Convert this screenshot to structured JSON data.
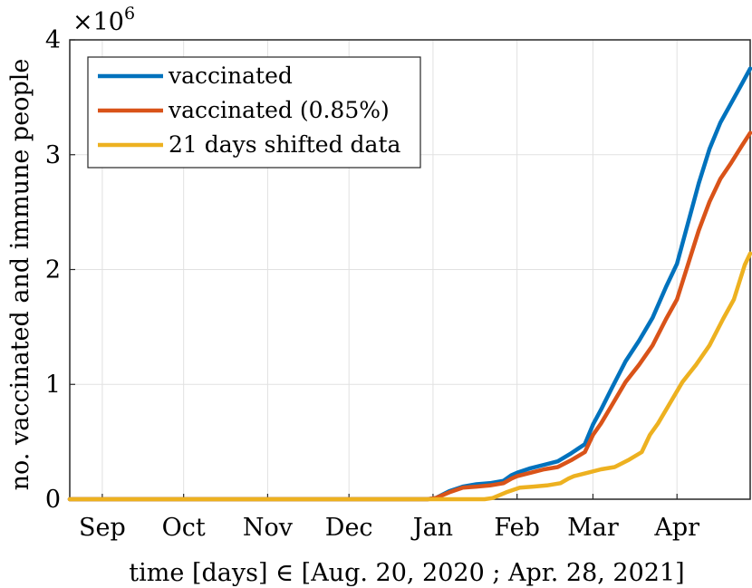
{
  "chart_data": {
    "type": "line",
    "title": "",
    "xlabel": "time [days] ∈ [Aug. 20, 2020 ; Apr. 28, 2021]",
    "ylabel": "no. vaccinated and immune people",
    "y_exponent_label": "×10",
    "y_exponent_power": "6",
    "x_range_days": [
      0,
      251
    ],
    "ylim": [
      0,
      4
    ],
    "grid": true,
    "legend_position": "top-left",
    "x_tick_labels": [
      {
        "label": "Sep",
        "day": 12
      },
      {
        "label": "Oct",
        "day": 42
      },
      {
        "label": "Nov",
        "day": 73
      },
      {
        "label": "Dec",
        "day": 103
      },
      {
        "label": "Jan",
        "day": 134
      },
      {
        "label": "Feb",
        "day": 165
      },
      {
        "label": "Mar",
        "day": 193
      },
      {
        "label": "Apr",
        "day": 224
      }
    ],
    "y_ticks": [
      0,
      1,
      2,
      3,
      4
    ],
    "y_tick_labels": [
      "0",
      "1",
      "2",
      "3",
      "4"
    ],
    "series": [
      {
        "name": "vaccinated",
        "color": "#0072BD",
        "days": [
          0,
          132,
          135,
          140,
          145,
          150,
          155,
          160,
          163,
          165,
          170,
          175,
          180,
          185,
          190,
          193,
          196,
          200,
          205,
          210,
          215,
          220,
          224,
          228,
          232,
          236,
          240,
          244,
          248,
          251
        ],
        "values": [
          0,
          0,
          0.01,
          0.07,
          0.11,
          0.13,
          0.14,
          0.16,
          0.21,
          0.23,
          0.27,
          0.3,
          0.33,
          0.4,
          0.48,
          0.65,
          0.78,
          0.97,
          1.2,
          1.38,
          1.58,
          1.85,
          2.05,
          2.4,
          2.75,
          3.05,
          3.28,
          3.45,
          3.62,
          3.75
        ]
      },
      {
        "name": "vaccinated (0.85%)",
        "color": "#D95319",
        "days": [
          0,
          132,
          135,
          140,
          145,
          150,
          155,
          160,
          163,
          165,
          170,
          175,
          180,
          185,
          190,
          193,
          196,
          200,
          205,
          210,
          215,
          220,
          224,
          228,
          232,
          236,
          240,
          244,
          248,
          251
        ],
        "values": [
          0,
          0,
          0.01,
          0.06,
          0.1,
          0.11,
          0.12,
          0.14,
          0.18,
          0.2,
          0.23,
          0.26,
          0.28,
          0.34,
          0.41,
          0.56,
          0.66,
          0.82,
          1.02,
          1.17,
          1.34,
          1.57,
          1.74,
          2.04,
          2.34,
          2.59,
          2.79,
          2.93,
          3.08,
          3.19
        ]
      },
      {
        "name": "21 days shifted data",
        "color": "#EDB120",
        "days": [
          0,
          153,
          156,
          161,
          166,
          171,
          176,
          181,
          184,
          186,
          191,
          196,
          201,
          206,
          211,
          214,
          217,
          221,
          226,
          231,
          236,
          241,
          245,
          249,
          251
        ],
        "values": [
          0,
          0,
          0.01,
          0.06,
          0.1,
          0.11,
          0.12,
          0.14,
          0.18,
          0.2,
          0.23,
          0.26,
          0.28,
          0.34,
          0.41,
          0.56,
          0.66,
          0.82,
          1.02,
          1.17,
          1.34,
          1.57,
          1.74,
          2.04,
          2.14
        ]
      }
    ]
  }
}
